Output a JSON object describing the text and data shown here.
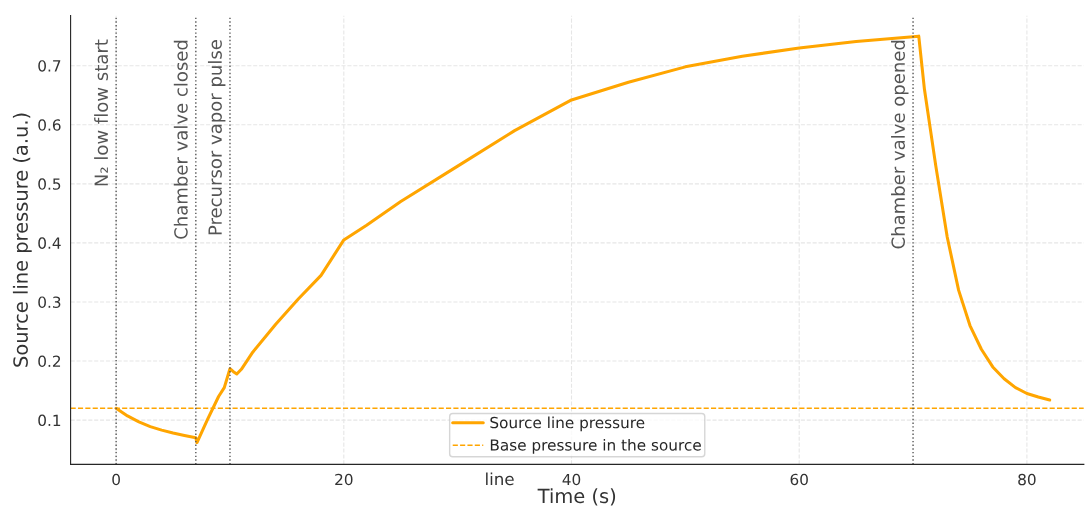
{
  "chart_data": {
    "type": "line",
    "xlabel": "Time (s)",
    "ylabel": "Source line pressure (a.u.)",
    "x": [
      0,
      1,
      2,
      3,
      4,
      5,
      6,
      7,
      7.1,
      8,
      9,
      9.5,
      10,
      10.3,
      10.6,
      11,
      12,
      14,
      16,
      18,
      20,
      22,
      25,
      30,
      35,
      40,
      45,
      50,
      55,
      60,
      65,
      70,
      70.5,
      71,
      72,
      73,
      74,
      75,
      76,
      77,
      78,
      79,
      80,
      81,
      82
    ],
    "series": [
      {
        "name": "Source line pressure",
        "color": "#ffa500",
        "line_style": "solid",
        "values": [
          0.12,
          0.107,
          0.097,
          0.089,
          0.083,
          0.078,
          0.074,
          0.07,
          0.062,
          0.1,
          0.14,
          0.155,
          0.187,
          0.182,
          0.178,
          0.186,
          0.215,
          0.262,
          0.305,
          0.345,
          0.405,
          0.43,
          0.47,
          0.53,
          0.59,
          0.642,
          0.672,
          0.698,
          0.716,
          0.73,
          0.741,
          0.749,
          0.75,
          0.66,
          0.53,
          0.41,
          0.32,
          0.26,
          0.22,
          0.19,
          0.17,
          0.155,
          0.145,
          0.139,
          0.134
        ]
      }
    ],
    "ref_lines": [
      {
        "axis": "y",
        "value": 0.12,
        "label": "Base pressure in the source",
        "color": "#ffa500",
        "line_style": "dashed"
      },
      {
        "axis": "x",
        "value": 0,
        "label": "N₂ low flow start",
        "color": "#555555",
        "line_style": "dotted"
      },
      {
        "axis": "x",
        "value": 7,
        "label": "Chamber valve closed",
        "color": "#555555",
        "line_style": "dotted"
      },
      {
        "axis": "x",
        "value": 10,
        "label": "Precursor vapor pulse",
        "color": "#555555",
        "line_style": "dotted"
      },
      {
        "axis": "x",
        "value": 70,
        "label": "Chamber valve opened",
        "color": "#555555",
        "line_style": "dotted"
      }
    ],
    "annotations": [
      "line"
    ],
    "xlim": [
      -4,
      85
    ],
    "ylim": [
      0.025,
      0.785
    ],
    "xticks": [
      0,
      20,
      40,
      60,
      80
    ],
    "yticks": [
      0.1,
      0.2,
      0.3,
      0.4,
      0.5,
      0.6,
      0.7
    ],
    "grid": true,
    "legend": "bottom"
  }
}
